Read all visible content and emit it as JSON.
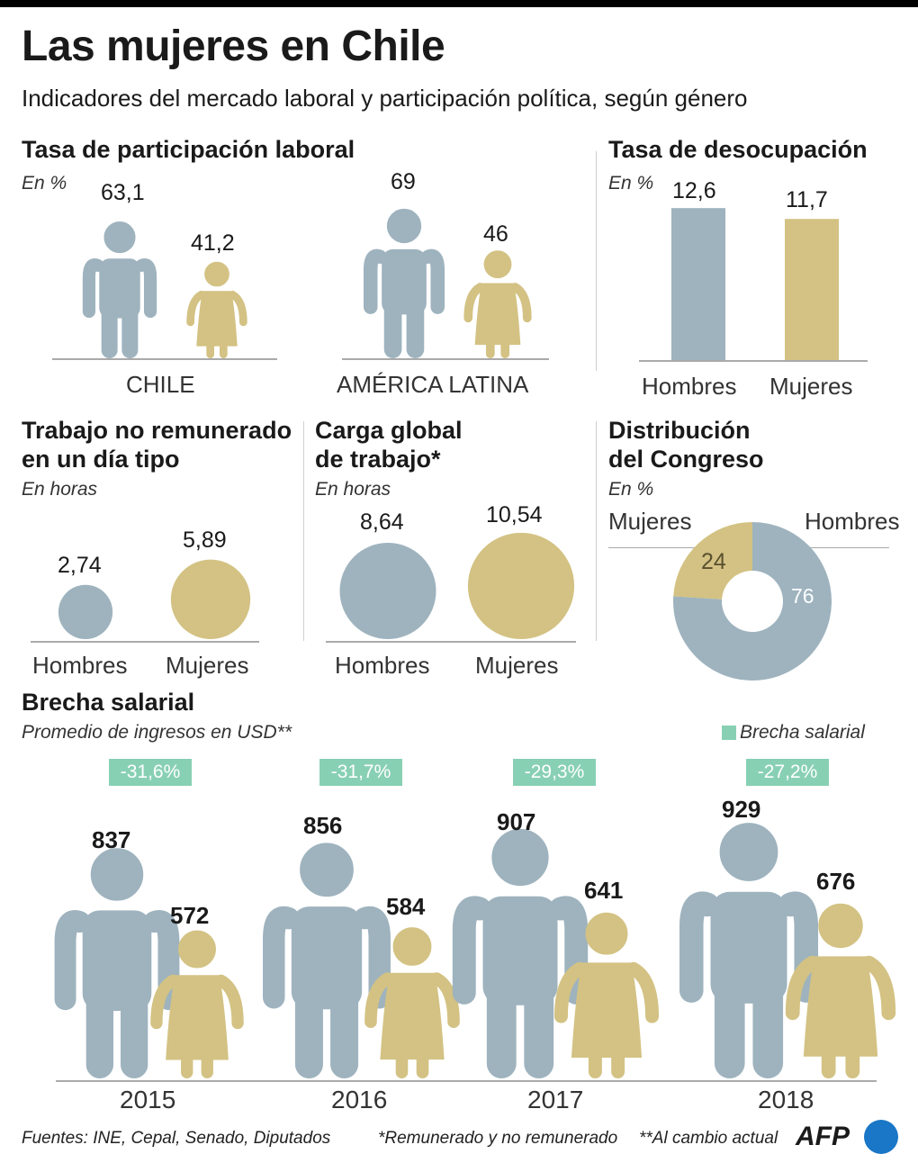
{
  "title": "Las mujeres en Chile",
  "subtitle": "Indicadores del mercado laboral y participación política, según género",
  "colors": {
    "men": "#9eb3be",
    "women": "#d3c283",
    "gap": "#88d0b4",
    "afp_blue": "#1a76c6"
  },
  "participation": {
    "heading": "Tasa de participación laboral",
    "unit": "En %",
    "chart_data": {
      "type": "pictogram",
      "categories": [
        "CHILE",
        "AMÉRICA LATINA"
      ],
      "series": [
        {
          "name": "Hombres",
          "values": [
            63.1,
            69
          ]
        },
        {
          "name": "Mujeres",
          "values": [
            41.2,
            46
          ]
        }
      ],
      "labels": {
        "men": [
          "63,1",
          "69"
        ],
        "women": [
          "41,2",
          "46"
        ]
      }
    }
  },
  "unemployment": {
    "heading": "Tasa de desocupación",
    "unit": "En %",
    "chart_data": {
      "type": "bar",
      "categories": [
        "Hombres",
        "Mujeres"
      ],
      "values": [
        12.6,
        11.7
      ],
      "labels": [
        "12,6",
        "11,7"
      ]
    }
  },
  "unpaid": {
    "heading_1": "Trabajo no remunerado",
    "heading_2": "en un día tipo",
    "unit": "En horas",
    "chart_data": {
      "type": "bubble",
      "categories": [
        "Hombres",
        "Mujeres"
      ],
      "values": [
        2.74,
        5.89
      ],
      "labels": [
        "2,74",
        "5,89"
      ]
    }
  },
  "global_load": {
    "heading_1": "Carga global",
    "heading_2": "de trabajo*",
    "unit": "En horas",
    "chart_data": {
      "type": "bubble",
      "categories": [
        "Hombres",
        "Mujeres"
      ],
      "values": [
        8.64,
        10.54
      ],
      "labels": [
        "8,64",
        "10,54"
      ]
    }
  },
  "congress": {
    "heading_1": "Distribución",
    "heading_2": "del Congreso",
    "unit": "En %",
    "chart_data": {
      "type": "pie",
      "categories": [
        "Mujeres",
        "Hombres"
      ],
      "values": [
        24,
        76
      ],
      "labels": [
        "24",
        "76"
      ]
    }
  },
  "wage_gap": {
    "heading": "Brecha salarial",
    "unit": "Promedio de ingresos en USD**",
    "legend": "Brecha salarial",
    "chart_data": {
      "type": "pictogram",
      "categories": [
        "2015",
        "2016",
        "2017",
        "2018"
      ],
      "series": [
        {
          "name": "Hombres",
          "values": [
            837,
            856,
            907,
            929
          ]
        },
        {
          "name": "Mujeres",
          "values": [
            572,
            584,
            641,
            676
          ]
        }
      ],
      "gap_labels": [
        "-31,6%",
        "-31,7%",
        "-29,3%",
        "-27,2%"
      ],
      "gap_values": [
        -31.6,
        -31.7,
        -29.3,
        -27.2
      ]
    }
  },
  "footer": {
    "sources": "Fuentes: INE, Cepal, Senado, Diputados",
    "note_1": "*Remunerado y no remunerado",
    "note_2": "**Al cambio actual",
    "logo": "AFP"
  }
}
